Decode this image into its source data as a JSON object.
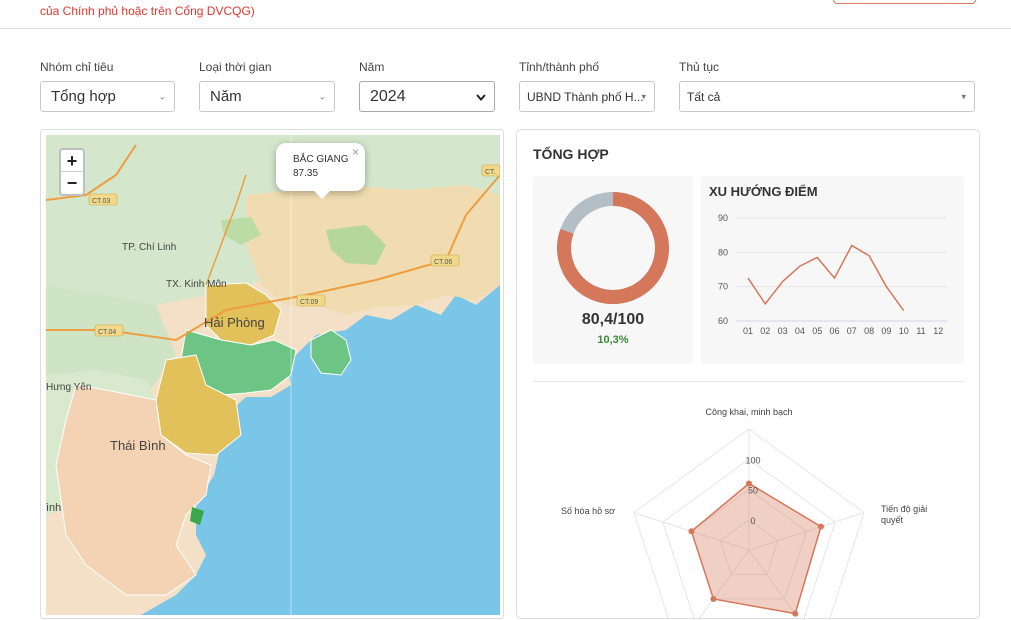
{
  "header": {
    "note": "của Chính phủ hoặc trên Cổng DVCQG)"
  },
  "filters": {
    "group": {
      "label": "Nhóm chỉ tiêu",
      "value": "Tổng hợp"
    },
    "time_type": {
      "label": "Loại thời gian",
      "value": "Năm"
    },
    "year": {
      "label": "Năm",
      "value": "2024"
    },
    "province": {
      "label": "Tỉnh/thành phố",
      "value": "UBND Thành phố H..."
    },
    "procedure": {
      "label": "Thủ tục",
      "value": "Tất cả"
    }
  },
  "map": {
    "zoom_in": "+",
    "zoom_out": "−",
    "popup": {
      "name": "BẮC GIANG",
      "value": "87.35",
      "close": "×"
    },
    "labels": {
      "haiphong": "Hải Phòng",
      "thaibinh": "Thái Bình",
      "chilinh": "TP. Chí Linh",
      "kinhmon": "TX. Kinh Môn",
      "hungyen": "Hưng Yên",
      "inh": "ình",
      "ct03": "CT.03",
      "ct04": "CT.04",
      "ct06": "CT.06",
      "ct09": "CT.09",
      "ctedge": "CT."
    }
  },
  "summary": {
    "title": "TỔNG HỢP",
    "score": "80,4/100",
    "change": "10,3%",
    "donut": {
      "value": 80.4,
      "max": 100,
      "color": "#d5775a",
      "rest_color": "#b4bec7"
    }
  },
  "chart_data": [
    {
      "type": "line",
      "title": "XU HƯỚNG ĐIỂM",
      "categories": [
        "01",
        "02",
        "03",
        "04",
        "05",
        "06",
        "07",
        "08",
        "09",
        "10",
        "11",
        "12"
      ],
      "values": [
        72.5,
        65,
        71.5,
        76,
        78.5,
        72.5,
        82,
        79,
        70,
        63,
        null,
        null
      ],
      "yticks": [
        60,
        70,
        80,
        90
      ],
      "ylim": [
        60,
        90
      ],
      "color": "#d5775a",
      "grid": true
    },
    {
      "type": "radar",
      "axes": [
        "Công khai, minh bạch",
        "Tiến độ giải quyết",
        "",
        "",
        "Số hóa hồ sơ"
      ],
      "rticks": [
        "0",
        "50",
        "100"
      ],
      "rlim": [
        -50,
        150
      ],
      "values": [
        60,
        75,
        80,
        50,
        50
      ],
      "color": "#d5775a"
    }
  ]
}
